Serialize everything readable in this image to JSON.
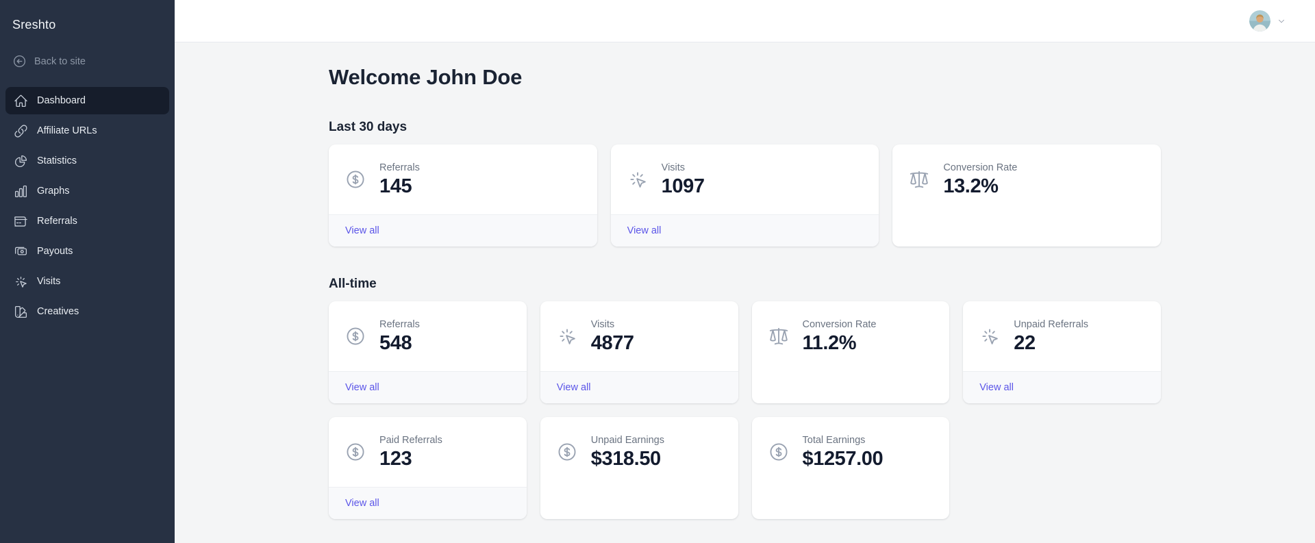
{
  "sidebar": {
    "brand": "Sreshto",
    "back_label": "Back to site",
    "back_icon": "arrow-left-circle-icon",
    "items": [
      {
        "label": "Dashboard",
        "icon": "home-icon",
        "active": true
      },
      {
        "label": "Affiliate URLs",
        "icon": "link-icon",
        "active": false
      },
      {
        "label": "Statistics",
        "icon": "pie-chart-icon",
        "active": false
      },
      {
        "label": "Graphs",
        "icon": "bar-chart-icon",
        "active": false
      },
      {
        "label": "Referrals",
        "icon": "credit-card-icon",
        "active": false
      },
      {
        "label": "Payouts",
        "icon": "cash-icon",
        "active": false
      },
      {
        "label": "Visits",
        "icon": "cursor-click-icon",
        "active": false
      },
      {
        "label": "Creatives",
        "icon": "swatch-icon",
        "active": false
      }
    ]
  },
  "header": {
    "avatar_icon": "user-avatar",
    "chevron_icon": "chevron-down-icon"
  },
  "main": {
    "welcome_title": "Welcome John Doe",
    "sections": [
      {
        "title": "Last 30 days",
        "columns": 3,
        "cards": [
          {
            "label": "Referrals",
            "value": "145",
            "icon": "circle-dollar-icon",
            "view_all": "View all"
          },
          {
            "label": "Visits",
            "value": "1097",
            "icon": "cursor-click-icon",
            "view_all": "View all"
          },
          {
            "label": "Conversion Rate",
            "value": "13.2%",
            "icon": "scale-icon",
            "view_all": null
          }
        ]
      },
      {
        "title": "All-time",
        "columns": 4,
        "cards": [
          {
            "label": "Referrals",
            "value": "548",
            "icon": "circle-dollar-icon",
            "view_all": "View all"
          },
          {
            "label": "Visits",
            "value": "4877",
            "icon": "cursor-click-icon",
            "view_all": "View all"
          },
          {
            "label": "Conversion Rate",
            "value": "11.2%",
            "icon": "scale-icon",
            "view_all": null
          },
          {
            "label": "Unpaid Referrals",
            "value": "22",
            "icon": "cursor-click-icon",
            "view_all": "View all"
          },
          {
            "label": "Paid Referrals",
            "value": "123",
            "icon": "circle-dollar-icon",
            "view_all": "View all"
          },
          {
            "label": "Unpaid Earnings",
            "value": "$318.50",
            "icon": "circle-dollar-icon",
            "view_all": null
          },
          {
            "label": "Total Earnings",
            "value": "$1257.00",
            "icon": "circle-dollar-icon",
            "view_all": null
          }
        ]
      }
    ]
  },
  "colors": {
    "sidebar_bg": "#273143",
    "sidebar_active_bg": "#161d2b",
    "accent_link": "#5b55e8",
    "value_text": "#131b2e",
    "page_bg": "#f4f5f6",
    "card_footer_bg": "#f8f9fb"
  }
}
